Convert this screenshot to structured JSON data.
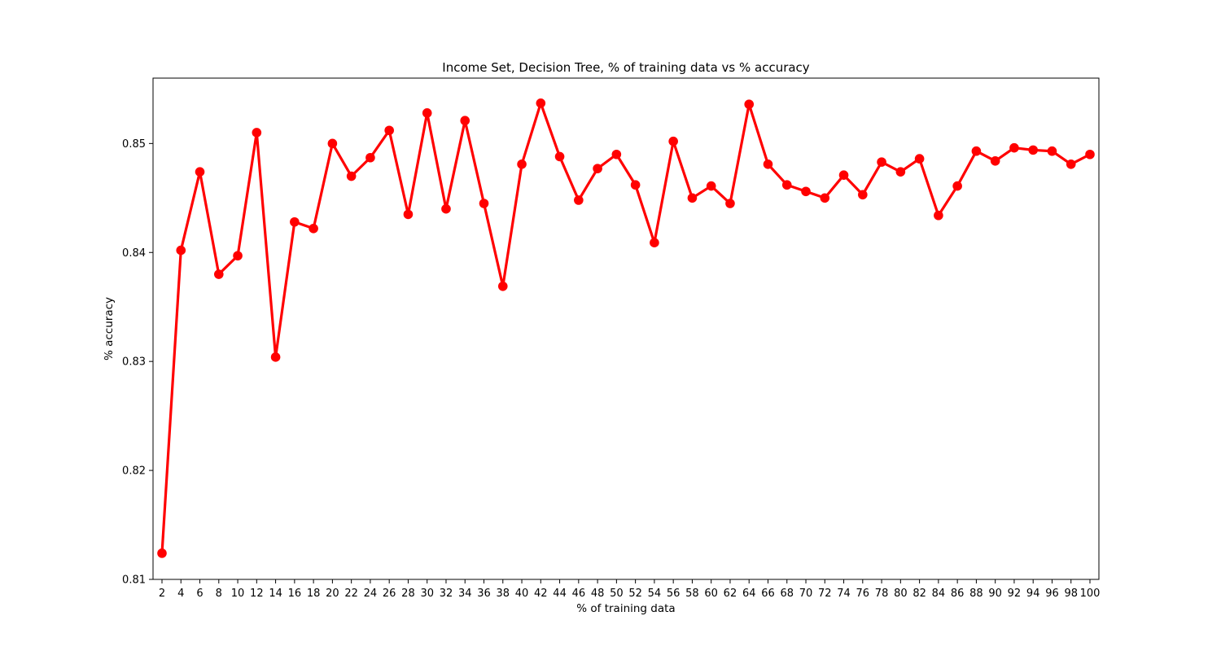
{
  "chart_data": {
    "type": "line",
    "title": "Income Set, Decision Tree, % of training data vs % accuracy",
    "xlabel": "% of training data",
    "ylabel": "% accuracy",
    "x": [
      2,
      4,
      6,
      8,
      10,
      12,
      14,
      16,
      18,
      20,
      22,
      24,
      26,
      28,
      30,
      32,
      34,
      36,
      38,
      40,
      42,
      44,
      46,
      48,
      50,
      52,
      54,
      56,
      58,
      60,
      62,
      64,
      66,
      68,
      70,
      72,
      74,
      76,
      78,
      80,
      82,
      84,
      86,
      88,
      90,
      92,
      94,
      96,
      98,
      100
    ],
    "series": [
      {
        "color": "#ff0000",
        "values": [
          0.8124,
          0.8402,
          0.8474,
          0.838,
          0.8397,
          0.851,
          0.8304,
          0.8428,
          0.8422,
          0.85,
          0.847,
          0.8487,
          0.8512,
          0.8435,
          0.8528,
          0.844,
          0.8521,
          0.8445,
          0.8369,
          0.8481,
          0.8537,
          0.8488,
          0.8448,
          0.8477,
          0.849,
          0.8462,
          0.8409,
          0.8502,
          0.845,
          0.8461,
          0.8445,
          0.8536,
          0.8481,
          0.8462,
          0.8456,
          0.845,
          0.8471,
          0.8453,
          0.8483,
          0.8474,
          0.8486,
          0.8434,
          0.8461,
          0.8493,
          0.8484,
          0.8496,
          0.8494,
          0.8493,
          0.8481,
          0.849
        ]
      }
    ],
    "ylim": [
      0.81,
      0.856
    ],
    "yticks": [
      0.81,
      0.82,
      0.83,
      0.84,
      0.85
    ],
    "ytick_labels": [
      "0.81",
      "0.82",
      "0.83",
      "0.84",
      "0.85"
    ],
    "grid": false,
    "legend": "none"
  }
}
